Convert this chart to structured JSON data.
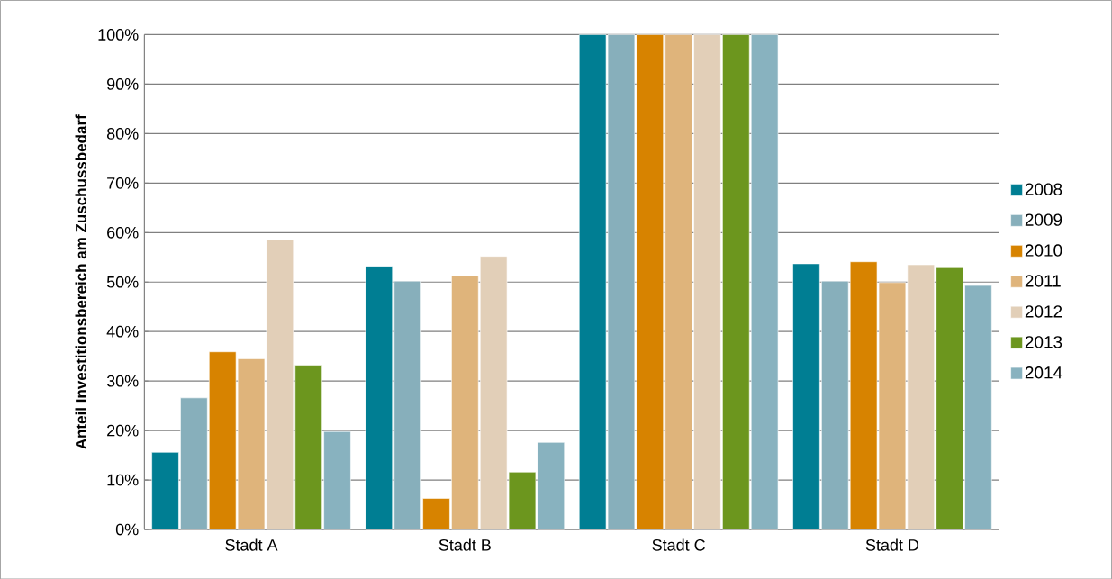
{
  "chart_data": {
    "type": "bar",
    "ylabel": "Anteil Investitionsbereich am Zuschussbedarf",
    "categories": [
      "Stadt A",
      "Stadt B",
      "Stadt C",
      "Stadt D"
    ],
    "series": [
      {
        "name": "2008",
        "color": "#007e93",
        "values": [
          15.6,
          53.2,
          100,
          53.7
        ]
      },
      {
        "name": "2009",
        "color": "#87afbb",
        "values": [
          26.6,
          50.2,
          100,
          50.2
        ]
      },
      {
        "name": "2010",
        "color": "#d78300",
        "values": [
          35.9,
          6.3,
          100,
          54.1
        ]
      },
      {
        "name": "2011",
        "color": "#dfb47b",
        "values": [
          34.5,
          51.3,
          100,
          49.9
        ]
      },
      {
        "name": "2012",
        "color": "#e2cfb8",
        "values": [
          58.5,
          55.2,
          100,
          53.5
        ]
      },
      {
        "name": "2013",
        "color": "#6c961e",
        "values": [
          33.2,
          11.6,
          100,
          52.9
        ]
      },
      {
        "name": "2014",
        "color": "#88b2bf",
        "values": [
          19.8,
          17.6,
          100,
          49.3
        ]
      }
    ],
    "ylim": [
      0,
      100
    ],
    "yticks": [
      {
        "value": 0,
        "label": "0%"
      },
      {
        "value": 10,
        "label": "10%"
      },
      {
        "value": 20,
        "label": "20%"
      },
      {
        "value": 30,
        "label": "30%"
      },
      {
        "value": 40,
        "label": "40%"
      },
      {
        "value": 50,
        "label": "50%"
      },
      {
        "value": 60,
        "label": "60%"
      },
      {
        "value": 70,
        "label": "70%"
      },
      {
        "value": 80,
        "label": "80%"
      },
      {
        "value": 90,
        "label": "90%"
      },
      {
        "value": 100,
        "label": "100%"
      }
    ],
    "grid": "y",
    "legend": "right"
  }
}
